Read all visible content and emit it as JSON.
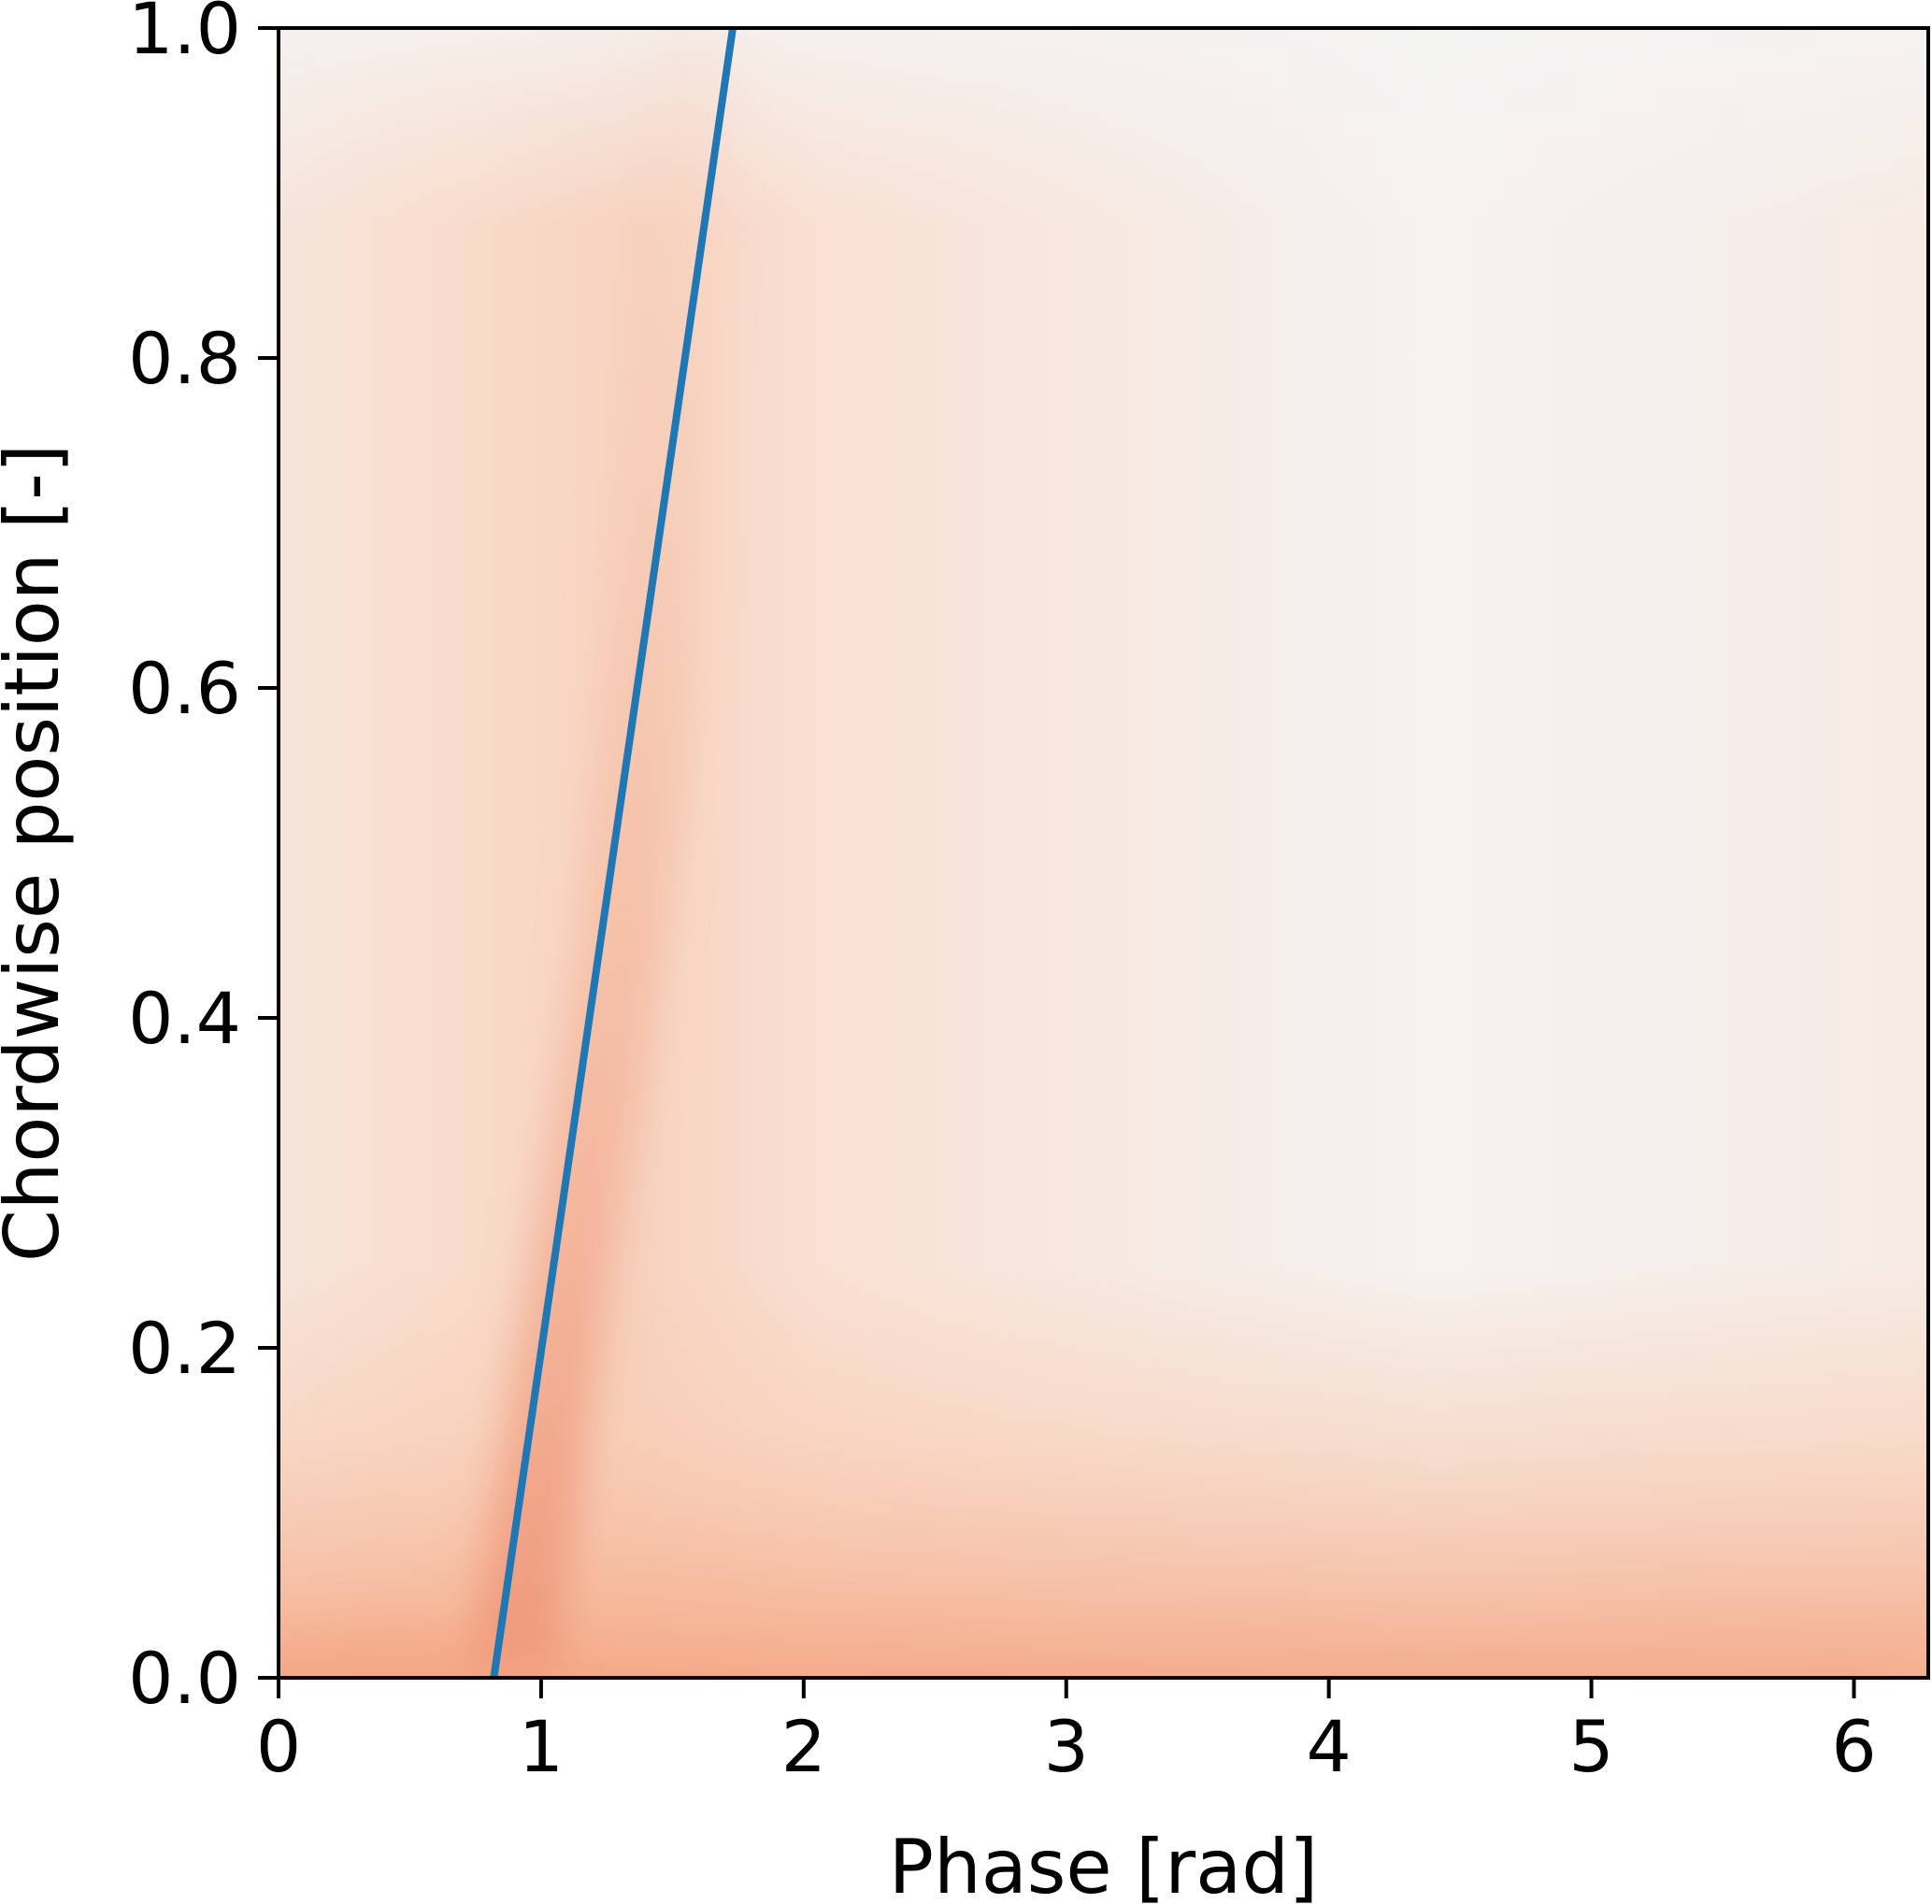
{
  "chart_data": {
    "type": "heatmap",
    "title": "",
    "xlabel": "Phase [rad]",
    "ylabel": "Chordwise position [-]",
    "xlim": [
      0,
      6.283
    ],
    "ylim": [
      0,
      1.0
    ],
    "x_ticks": [
      0,
      1,
      2,
      3,
      4,
      5,
      6
    ],
    "x_tick_labels": [
      "0",
      "1",
      "2",
      "3",
      "4",
      "5",
      "6"
    ],
    "y_ticks": [
      0.0,
      0.2,
      0.4,
      0.6,
      0.8,
      1.0
    ],
    "y_tick_labels": [
      "0.0",
      "0.2",
      "0.4",
      "0.6",
      "0.8",
      "1.0"
    ],
    "colormap": "RdBu_r (white to red, positive values only)",
    "grid": false,
    "heatmap_features": [
      {
        "phase": 0.45,
        "position": 0.0,
        "level": "high",
        "color": "#b2182b"
      },
      {
        "phase": 6.2,
        "position": 0.0,
        "level": "medium-high",
        "color": "#c63b3b"
      },
      {
        "phase": 1.2,
        "position": 0.15,
        "level": "medium",
        "color": "#f2a88a"
      },
      {
        "phase": 4.2,
        "position": 0.6,
        "level": "near-zero",
        "color": "#f5f3f2"
      }
    ],
    "series": [
      {
        "type": "line",
        "color": "#1f77b4",
        "x": [
          0.82,
          1.73
        ],
        "y": [
          0.0,
          1.0
        ]
      }
    ]
  }
}
